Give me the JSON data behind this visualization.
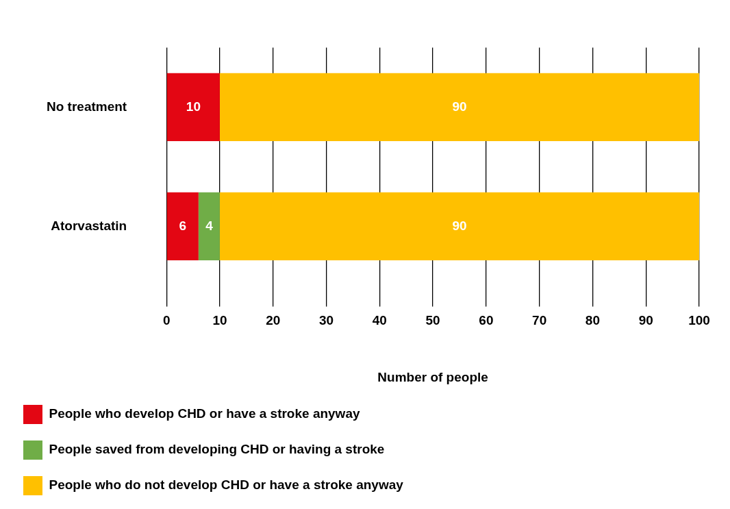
{
  "chart_data": {
    "type": "bar",
    "orientation": "horizontal",
    "stacked": true,
    "categories": [
      "No treatment",
      "Atorvastatin"
    ],
    "series": [
      {
        "name": "People who develop CHD or have a stroke anyway",
        "color": "#e30613",
        "values": [
          10,
          6
        ]
      },
      {
        "name": "People saved from developing CHD or having a stroke",
        "color": "#70ad47",
        "values": [
          null,
          4
        ]
      },
      {
        "name": "People who do not develop CHD or have a stroke anyway",
        "color": "#ffc000",
        "values": [
          90,
          90
        ]
      }
    ],
    "xlim": [
      0,
      100
    ],
    "xticks": [
      0,
      10,
      20,
      30,
      40,
      50,
      60,
      70,
      80,
      90,
      100
    ],
    "xlabel": "Number of people",
    "grid": "x",
    "legend": "bottom",
    "data_labels": true
  }
}
